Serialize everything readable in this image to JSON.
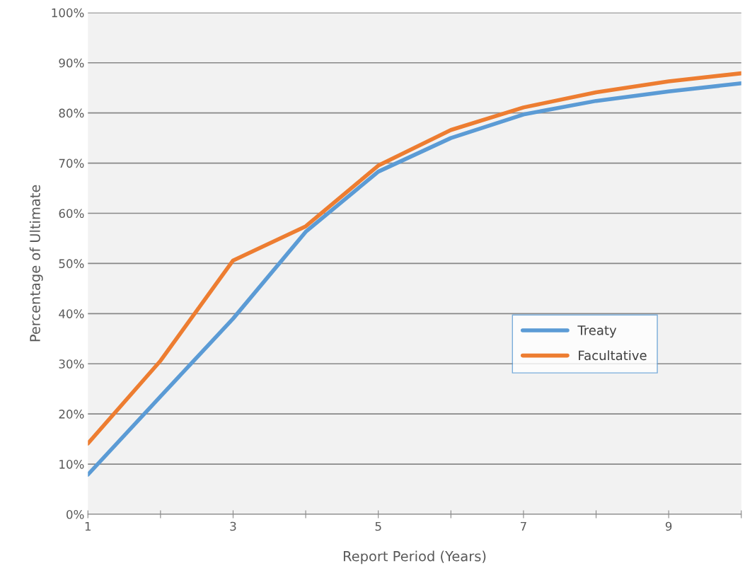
{
  "chart_data": {
    "type": "line",
    "xlabel": "Report Period (Years)",
    "ylabel": "Percentage of Ultimate",
    "x": [
      1,
      2,
      3,
      4,
      5,
      6,
      7,
      8,
      9,
      10
    ],
    "series": [
      {
        "name": "Treaty",
        "color": "#5b9bd5",
        "values": [
          7.9,
          23.5,
          39,
          56.3,
          68.3,
          75,
          79.7,
          82.4,
          84.3,
          85.9
        ]
      },
      {
        "name": "Facultative",
        "color": "#ed7d31",
        "values": [
          14.1,
          30.6,
          50.6,
          57.4,
          69.5,
          76.6,
          81.1,
          84.1,
          86.3,
          87.9
        ]
      }
    ],
    "xlim": [
      1,
      10
    ],
    "xticks": [
      1,
      {
        "value": 2,
        "label": null
      },
      3,
      {
        "value": 4,
        "label": null
      },
      5,
      {
        "value": 6,
        "label": null
      },
      7,
      {
        "value": 8,
        "label": null
      },
      9,
      {
        "value": 10,
        "label": null
      }
    ],
    "ylim": [
      0,
      100
    ],
    "yticks": [
      {
        "value": 0,
        "label": "0%"
      },
      {
        "value": 10,
        "label": "10%"
      },
      {
        "value": 20,
        "label": "20%"
      },
      {
        "value": 30,
        "label": "30%"
      },
      {
        "value": 40,
        "label": "40%"
      },
      {
        "value": 50,
        "label": "50%"
      },
      {
        "value": 60,
        "label": "60%"
      },
      {
        "value": 70,
        "label": "70%"
      },
      {
        "value": 80,
        "label": "80%"
      },
      {
        "value": 90,
        "label": "90%"
      },
      {
        "value": 100,
        "label": "100%"
      }
    ],
    "grid": "y",
    "legend": "center right",
    "marker": "none",
    "line_style": "solid"
  }
}
